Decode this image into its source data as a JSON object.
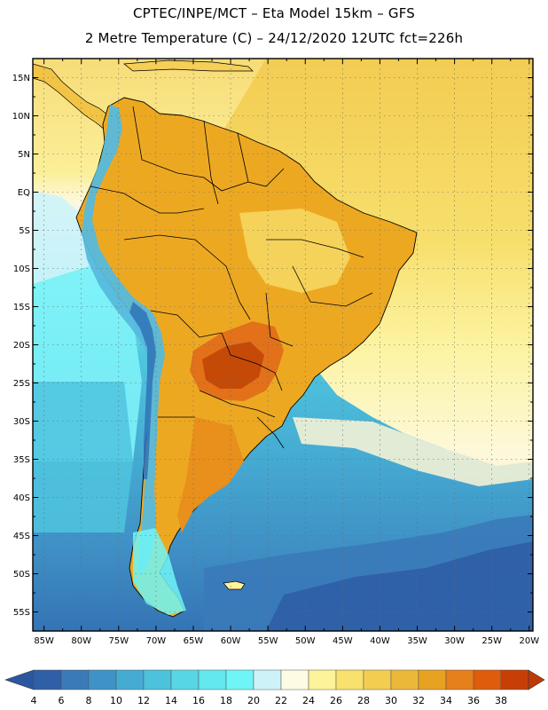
{
  "header": {
    "line1": "CPTEC/INPE/MCT –  Eta Model 15km – GFS",
    "line2": "2 Metre Temperature (C) – 24/12/2020 12UTC fct=226h"
  },
  "map": {
    "lat_labels": [
      "15N",
      "10N",
      "5N",
      "EQ",
      "5S",
      "10S",
      "15S",
      "20S",
      "25S",
      "30S",
      "35S",
      "40S",
      "45S",
      "50S",
      "55S"
    ],
    "lat_values": [
      15,
      10,
      5,
      0,
      -5,
      -10,
      -15,
      -20,
      -25,
      -30,
      -35,
      -40,
      -45,
      -50,
      -55
    ],
    "lon_labels": [
      "85W",
      "80W",
      "75W",
      "70W",
      "65W",
      "60W",
      "55W",
      "50W",
      "45W",
      "40W",
      "35W",
      "30W",
      "25W",
      "20W"
    ],
    "lon_values": [
      -85,
      -80,
      -75,
      -70,
      -65,
      -60,
      -55,
      -50,
      -45,
      -40,
      -35,
      -30,
      -25,
      -20
    ],
    "lat_range": [
      -57.5,
      17.5
    ],
    "lon_range": [
      -86.5,
      -19.5
    ]
  },
  "colorbar": {
    "labels": [
      "4",
      "6",
      "8",
      "10",
      "12",
      "14",
      "16",
      "18",
      "20",
      "22",
      "24",
      "26",
      "28",
      "30",
      "32",
      "34",
      "36",
      "38"
    ],
    "colors": [
      "#2e5fa7",
      "#3a7ab9",
      "#3f92c6",
      "#45abd2",
      "#4dc2dd",
      "#57d6e6",
      "#62e8ee",
      "#70f5f7",
      "#cdf3f8",
      "#fdfbe4",
      "#fcf39a",
      "#f8e16c",
      "#f3cd50",
      "#ecb83a",
      "#e8a221",
      "#e6801a",
      "#de5c0c",
      "#c73f06"
    ],
    "low_color": "#2d56a0",
    "high_color": "#bd3a05"
  }
}
